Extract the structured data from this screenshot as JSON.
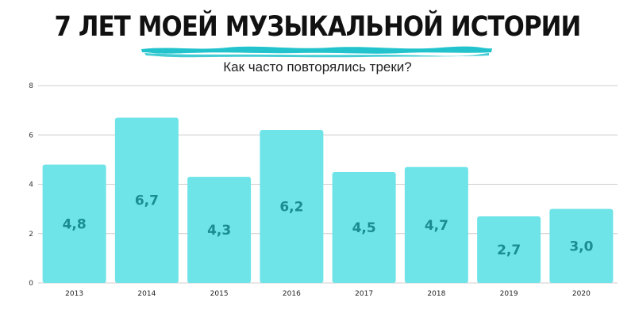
{
  "title": "7 ЛЕТ МОЕЙ МУЗЫКАЛЬНОЙ ИСТОРИИ",
  "subtitle": "Как часто повторялись треки?",
  "colors": {
    "bar": "#6ee4e8",
    "label": "#1a8c92",
    "accent": "#22c3cc",
    "grid": "#cccccc"
  },
  "chart_data": {
    "type": "bar",
    "categories": [
      "2013",
      "2014",
      "2015",
      "2016",
      "2017",
      "2018",
      "2019",
      "2020"
    ],
    "values": [
      4.8,
      6.7,
      4.3,
      6.2,
      4.5,
      4.7,
      2.7,
      3.0
    ],
    "value_labels": [
      "4,8",
      "6,7",
      "4,3",
      "6,2",
      "4,5",
      "4,7",
      "2,7",
      "3,0"
    ],
    "ylim": [
      0,
      8
    ],
    "yticks": [
      0,
      2,
      4,
      6,
      8
    ],
    "ytick_labels": [
      "0",
      "2",
      "4",
      "6",
      "8"
    ],
    "grid": true,
    "title": "7 ЛЕТ МОЕЙ МУЗЫКАЛЬНОЙ ИСТОРИИ",
    "subtitle": "Как часто повторялись треки?",
    "xlabel": "",
    "ylabel": ""
  }
}
